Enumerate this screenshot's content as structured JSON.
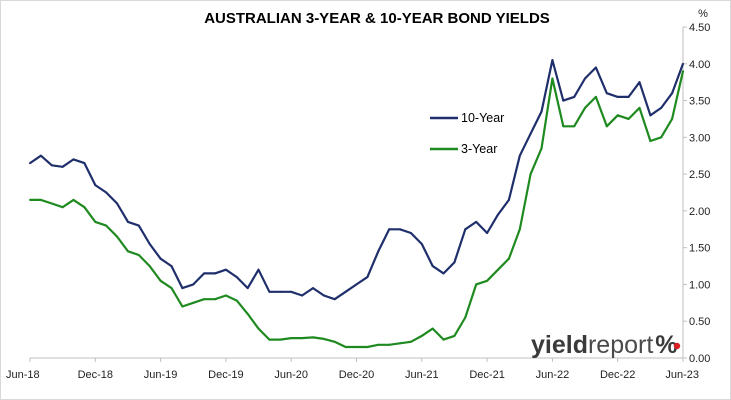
{
  "chart_data": {
    "type": "line",
    "title": "AUSTRALIAN 3-YEAR & 10-YEAR BOND YIELDS",
    "y_unit": "%",
    "ylim": [
      0,
      4.5
    ],
    "y_ticks": [
      "0.00",
      "0.50",
      "1.00",
      "1.50",
      "2.00",
      "2.50",
      "3.00",
      "3.50",
      "4.00",
      "4.50"
    ],
    "x_ticks": [
      "Jun-18",
      "Dec-18",
      "Jun-19",
      "Dec-19",
      "Jun-20",
      "Dec-20",
      "Jun-21",
      "Dec-21",
      "Jun-22",
      "Dec-22",
      "Jun-23"
    ],
    "grid": false,
    "legend_position": "center-right",
    "series": [
      {
        "name": "10-Year",
        "color": "#1f2f6b",
        "points": [
          [
            "Jun-18",
            2.65
          ],
          [
            "Jul-18",
            2.75
          ],
          [
            "Aug-18",
            2.62
          ],
          [
            "Sep-18",
            2.6
          ],
          [
            "Oct-18",
            2.7
          ],
          [
            "Nov-18",
            2.65
          ],
          [
            "Dec-18",
            2.35
          ],
          [
            "Jan-19",
            2.25
          ],
          [
            "Feb-19",
            2.1
          ],
          [
            "Mar-19",
            1.85
          ],
          [
            "Apr-19",
            1.8
          ],
          [
            "May-19",
            1.55
          ],
          [
            "Jun-19",
            1.35
          ],
          [
            "Jul-19",
            1.25
          ],
          [
            "Aug-19",
            0.95
          ],
          [
            "Sep-19",
            1.0
          ],
          [
            "Oct-19",
            1.15
          ],
          [
            "Nov-19",
            1.15
          ],
          [
            "Dec-19",
            1.2
          ],
          [
            "Jan-20",
            1.1
          ],
          [
            "Feb-20",
            0.95
          ],
          [
            "Mar-20",
            1.2
          ],
          [
            "Apr-20",
            0.9
          ],
          [
            "May-20",
            0.9
          ],
          [
            "Jun-20",
            0.9
          ],
          [
            "Jul-20",
            0.85
          ],
          [
            "Aug-20",
            0.95
          ],
          [
            "Sep-20",
            0.85
          ],
          [
            "Oct-20",
            0.8
          ],
          [
            "Nov-20",
            0.9
          ],
          [
            "Dec-20",
            1.0
          ],
          [
            "Jan-21",
            1.1
          ],
          [
            "Feb-21",
            1.45
          ],
          [
            "Mar-21",
            1.75
          ],
          [
            "Apr-21",
            1.75
          ],
          [
            "May-21",
            1.7
          ],
          [
            "Jun-21",
            1.55
          ],
          [
            "Jul-21",
            1.25
          ],
          [
            "Aug-21",
            1.15
          ],
          [
            "Sep-21",
            1.3
          ],
          [
            "Oct-21",
            1.75
          ],
          [
            "Nov-21",
            1.85
          ],
          [
            "Dec-21",
            1.7
          ],
          [
            "Jan-22",
            1.95
          ],
          [
            "Feb-22",
            2.15
          ],
          [
            "Mar-22",
            2.75
          ],
          [
            "Apr-22",
            3.05
          ],
          [
            "May-22",
            3.35
          ],
          [
            "Jun-22",
            4.05
          ],
          [
            "Jul-22",
            3.5
          ],
          [
            "Aug-22",
            3.55
          ],
          [
            "Sep-22",
            3.8
          ],
          [
            "Oct-22",
            3.95
          ],
          [
            "Nov-22",
            3.6
          ],
          [
            "Dec-22",
            3.55
          ],
          [
            "Jan-23",
            3.55
          ],
          [
            "Feb-23",
            3.75
          ],
          [
            "Mar-23",
            3.3
          ],
          [
            "Apr-23",
            3.4
          ],
          [
            "May-23",
            3.6
          ],
          [
            "Jun-23",
            4.0
          ]
        ]
      },
      {
        "name": "3-Year",
        "color": "#1f8a1f",
        "points": [
          [
            "Jun-18",
            2.15
          ],
          [
            "Jul-18",
            2.15
          ],
          [
            "Aug-18",
            2.1
          ],
          [
            "Sep-18",
            2.05
          ],
          [
            "Oct-18",
            2.15
          ],
          [
            "Nov-18",
            2.05
          ],
          [
            "Dec-18",
            1.85
          ],
          [
            "Jan-19",
            1.8
          ],
          [
            "Feb-19",
            1.65
          ],
          [
            "Mar-19",
            1.45
          ],
          [
            "Apr-19",
            1.4
          ],
          [
            "May-19",
            1.25
          ],
          [
            "Jun-19",
            1.05
          ],
          [
            "Jul-19",
            0.95
          ],
          [
            "Aug-19",
            0.7
          ],
          [
            "Sep-19",
            0.75
          ],
          [
            "Oct-19",
            0.8
          ],
          [
            "Nov-19",
            0.8
          ],
          [
            "Dec-19",
            0.85
          ],
          [
            "Jan-20",
            0.78
          ],
          [
            "Feb-20",
            0.6
          ],
          [
            "Mar-20",
            0.4
          ],
          [
            "Apr-20",
            0.25
          ],
          [
            "May-20",
            0.25
          ],
          [
            "Jun-20",
            0.27
          ],
          [
            "Jul-20",
            0.27
          ],
          [
            "Aug-20",
            0.28
          ],
          [
            "Sep-20",
            0.26
          ],
          [
            "Oct-20",
            0.22
          ],
          [
            "Nov-20",
            0.15
          ],
          [
            "Dec-20",
            0.15
          ],
          [
            "Jan-21",
            0.15
          ],
          [
            "Feb-21",
            0.18
          ],
          [
            "Mar-21",
            0.18
          ],
          [
            "Apr-21",
            0.2
          ],
          [
            "May-21",
            0.22
          ],
          [
            "Jun-21",
            0.3
          ],
          [
            "Jul-21",
            0.4
          ],
          [
            "Aug-21",
            0.25
          ],
          [
            "Sep-21",
            0.3
          ],
          [
            "Oct-21",
            0.55
          ],
          [
            "Nov-21",
            1.0
          ],
          [
            "Dec-21",
            1.05
          ],
          [
            "Jan-22",
            1.2
          ],
          [
            "Feb-22",
            1.35
          ],
          [
            "Mar-22",
            1.75
          ],
          [
            "Apr-22",
            2.5
          ],
          [
            "May-22",
            2.85
          ],
          [
            "Jun-22",
            3.8
          ],
          [
            "Jul-22",
            3.15
          ],
          [
            "Aug-22",
            3.15
          ],
          [
            "Sep-22",
            3.4
          ],
          [
            "Oct-22",
            3.55
          ],
          [
            "Nov-22",
            3.15
          ],
          [
            "Dec-22",
            3.3
          ],
          [
            "Jan-23",
            3.25
          ],
          [
            "Feb-23",
            3.4
          ],
          [
            "Mar-23",
            2.95
          ],
          [
            "Apr-23",
            3.0
          ],
          [
            "May-23",
            3.25
          ],
          [
            "Jun-23",
            3.9
          ]
        ]
      }
    ]
  },
  "logo": {
    "part1": "yield",
    "part2": "report",
    "part3": "%",
    "accent_color": "#d91f26"
  }
}
